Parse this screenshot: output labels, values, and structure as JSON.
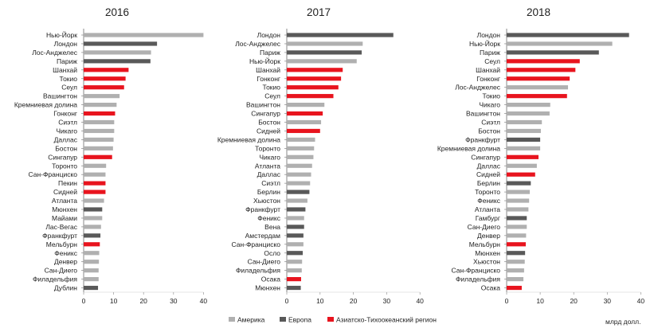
{
  "chart_data": [
    {
      "type": "bar",
      "orientation": "horizontal",
      "title": "2016",
      "xlim": [
        0,
        40
      ],
      "ticks": [
        0,
        10,
        20,
        30,
        40
      ],
      "grid": false,
      "categories": [
        "Нью-Йорк",
        "Лондон",
        "Лос-Анджелес",
        "Париж",
        "Шанхай",
        "Токио",
        "Сеул",
        "Вашингтон",
        "Кремниевая долина",
        "Гонконг",
        "Сиэтл",
        "Чикаго",
        "Даллас",
        "Бостон",
        "Сингапур",
        "Торонто",
        "Сан-Франциско",
        "Пекин",
        "Сидней",
        "Атланта",
        "Мюнхен",
        "Майами",
        "Лас-Вегас",
        "Франкфурт",
        "Мельбурн",
        "Феникс",
        "Денвер",
        "Сан-Диего",
        "Филадельфия",
        "Дублин"
      ],
      "values": [
        40.0,
        24.5,
        22.5,
        22.3,
        15.0,
        14.0,
        13.5,
        12.0,
        11.0,
        10.5,
        10.2,
        10.2,
        10.0,
        9.8,
        9.5,
        7.5,
        7.3,
        7.3,
        7.3,
        6.8,
        6.2,
        6.2,
        5.8,
        5.6,
        5.4,
        5.2,
        5.1,
        5.0,
        5.0,
        4.8
      ],
      "regions": [
        "america",
        "europe",
        "america",
        "europe",
        "asia",
        "asia",
        "asia",
        "america",
        "america",
        "asia",
        "america",
        "america",
        "america",
        "america",
        "asia",
        "america",
        "america",
        "asia",
        "asia",
        "america",
        "europe",
        "america",
        "america",
        "europe",
        "asia",
        "america",
        "america",
        "america",
        "america",
        "europe"
      ]
    },
    {
      "type": "bar",
      "orientation": "horizontal",
      "title": "2017",
      "xlim": [
        0,
        40
      ],
      "ticks": [
        0,
        10,
        20,
        30,
        40
      ],
      "grid": false,
      "categories": [
        "Лондон",
        "Лос-Анджелес",
        "Париж",
        "Нью-Йорк",
        "Шанхай",
        "Гонконг",
        "Токио",
        "Сеул",
        "Вашингтон",
        "Сингапур",
        "Бостон",
        "Сидней",
        "Кремниевая долина",
        "Торонто",
        "Чикаго",
        "Атланта",
        "Даллас",
        "Сиэтл",
        "Берлин",
        "Хьюстон",
        "Франкфурт",
        "Феникс",
        "Вена",
        "Амстердам",
        "Сан-Франциско",
        "Осло",
        "Сан-Диего",
        "Филадельфия",
        "Осака",
        "Мюнхен"
      ],
      "values": [
        32.0,
        22.8,
        22.5,
        21.0,
        16.8,
        16.3,
        15.5,
        14.0,
        11.3,
        10.8,
        10.3,
        10.0,
        8.5,
        8.2,
        8.0,
        7.6,
        7.3,
        7.0,
        6.8,
        6.2,
        5.6,
        5.2,
        5.2,
        5.0,
        5.0,
        4.8,
        4.6,
        4.5,
        4.3,
        4.2
      ],
      "regions": [
        "europe",
        "america",
        "europe",
        "america",
        "asia",
        "asia",
        "asia",
        "asia",
        "america",
        "asia",
        "america",
        "asia",
        "america",
        "america",
        "america",
        "america",
        "america",
        "america",
        "europe",
        "america",
        "europe",
        "america",
        "europe",
        "europe",
        "america",
        "europe",
        "america",
        "america",
        "asia",
        "europe"
      ]
    },
    {
      "type": "bar",
      "orientation": "horizontal",
      "title": "2018",
      "xlim": [
        0,
        40
      ],
      "ticks": [
        0,
        10,
        20,
        30,
        40
      ],
      "grid": false,
      "categories": [
        "Лондон",
        "Нью-Йорк",
        "Париж",
        "Сеул",
        "Шанхай",
        "Гонконг",
        "Лос-Анджелес",
        "Токио",
        "Чикаго",
        "Вашингтон",
        "Сиэтл",
        "Бостон",
        "Франкфурт",
        "Кремниевая долина",
        "Сингапур",
        "Даллас",
        "Сидней",
        "Берлин",
        "Торонто",
        "Феникс",
        "Атланта",
        "Гамбург",
        "Сан-Диего",
        "Денвер",
        "Мельбурн",
        "Мюнхен",
        "Хьюстон",
        "Сан-Франциско",
        "Филадельфия",
        "Осака"
      ],
      "values": [
        36.5,
        31.5,
        27.5,
        21.8,
        20.5,
        18.8,
        18.3,
        18.0,
        13.0,
        12.8,
        10.5,
        10.2,
        10.0,
        10.0,
        9.5,
        9.0,
        8.5,
        7.2,
        6.9,
        6.7,
        6.5,
        6.0,
        6.0,
        5.8,
        5.7,
        5.5,
        5.4,
        5.2,
        5.0,
        4.5
      ],
      "regions": [
        "europe",
        "america",
        "europe",
        "asia",
        "asia",
        "asia",
        "america",
        "asia",
        "america",
        "america",
        "america",
        "america",
        "europe",
        "america",
        "asia",
        "america",
        "asia",
        "europe",
        "america",
        "america",
        "america",
        "europe",
        "america",
        "america",
        "asia",
        "europe",
        "america",
        "america",
        "america",
        "asia"
      ]
    }
  ],
  "legend": {
    "placement": "bottom",
    "items": [
      {
        "key": "america",
        "label": "Америка",
        "color": "#b0b0b0"
      },
      {
        "key": "europe",
        "label": "Европа",
        "color": "#595959"
      },
      {
        "key": "asia",
        "label": "Азиатско-Тихоокеанский регион",
        "color": "#e8141e"
      }
    ]
  },
  "unit_label": "млрд долл.",
  "colors": {
    "america": "#b0b0b0",
    "europe": "#595959",
    "asia": "#e8141e",
    "axis": "#888888",
    "text": "#222222"
  }
}
